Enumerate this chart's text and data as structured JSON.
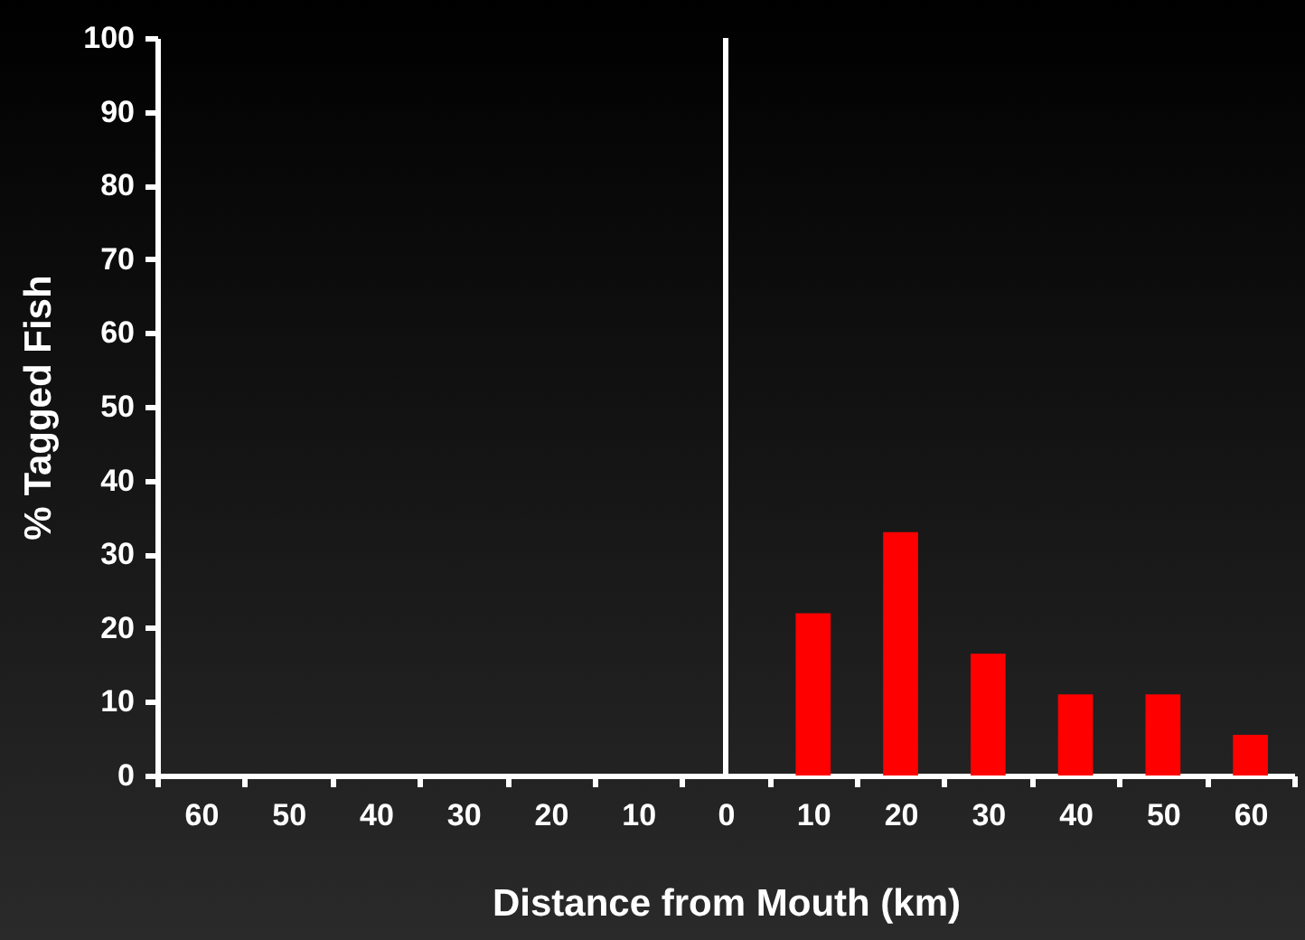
{
  "chart_data": {
    "type": "bar",
    "categories": [
      "60",
      "50",
      "40",
      "30",
      "20",
      "10",
      "0",
      "10",
      "20",
      "30",
      "40",
      "50",
      "60"
    ],
    "values": [
      0,
      0,
      0,
      0,
      0,
      0,
      0,
      22,
      33,
      16.5,
      11,
      11,
      5.5
    ],
    "color": "#ff0000",
    "xlabel": "Distance from Mouth (km)",
    "ylabel": "% Tagged Fish",
    "ylim": [
      0,
      100
    ],
    "yticks": [
      0,
      10,
      20,
      30,
      40,
      50,
      60,
      70,
      80,
      90,
      100
    ],
    "ref_lines": [
      {
        "axis": "x",
        "value": "0",
        "color": "#ffffff"
      }
    ],
    "grid": false
  }
}
